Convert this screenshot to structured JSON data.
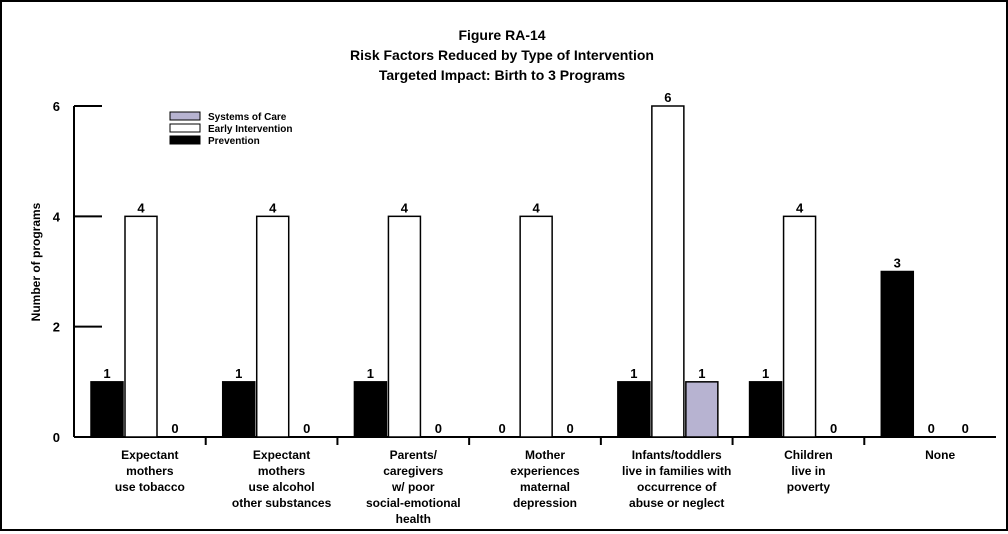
{
  "chart_data": {
    "type": "bar",
    "title_lines": [
      "Figure RA-14",
      "Risk Factors Reduced by Type of Intervention",
      "Targeted Impact: Birth to 3 Programs"
    ],
    "ylabel": "Number of programs",
    "xlabel": "",
    "ylim": [
      0,
      6
    ],
    "yticks": [
      0,
      2,
      4,
      6
    ],
    "legend_position": "top-left",
    "grid": false,
    "categories": [
      [
        "Expectant",
        "mothers",
        "use tobacco"
      ],
      [
        "Expectant",
        "mothers",
        "use alcohol",
        "other substances"
      ],
      [
        "Parents/",
        "caregivers",
        "w/ poor",
        "social-emotional",
        "health"
      ],
      [
        "Mother",
        "experiences",
        "maternal",
        "depression"
      ],
      [
        "Infants/toddlers",
        "live in families with",
        "occurrence of",
        "abuse or neglect"
      ],
      [
        "Children",
        "live in",
        "poverty"
      ],
      [
        "None"
      ]
    ],
    "series": [
      {
        "name": "Prevention",
        "color": "#000000",
        "values": [
          1,
          1,
          1,
          0,
          1,
          1,
          3
        ]
      },
      {
        "name": "Early Intervention",
        "color": "#ffffff",
        "values": [
          4,
          4,
          4,
          4,
          6,
          4,
          0
        ]
      },
      {
        "name": "Systems of Care",
        "color": "#b7b3d1",
        "values": [
          0,
          0,
          0,
          0,
          1,
          0,
          0
        ]
      }
    ],
    "legend_order": [
      "Systems of Care",
      "Early Intervention",
      "Prevention"
    ]
  }
}
